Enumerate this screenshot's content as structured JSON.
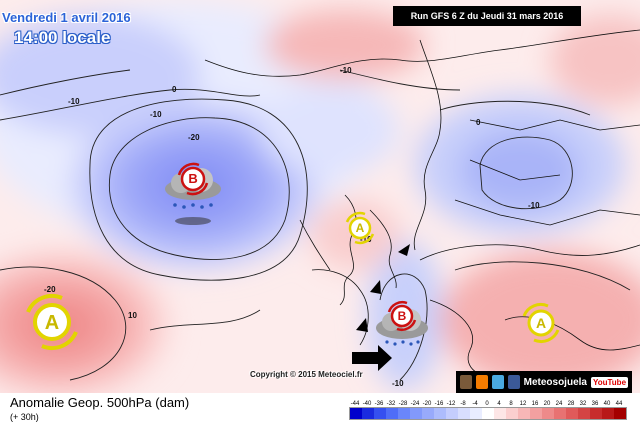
{
  "header": {
    "date": "Vendredi 1 avril 2016",
    "time": "14:00 locale",
    "run": "Run GFS 6 Z du Jeudi 31 mars 2016"
  },
  "contour_labels": [
    "-10",
    "-20",
    "-10",
    "-10",
    "0",
    "-10",
    "10",
    "-20",
    "0",
    "-10",
    "-10"
  ],
  "pressure_systems": [
    {
      "letter": "B",
      "kind": "low"
    },
    {
      "letter": "A",
      "kind": "high"
    },
    {
      "letter": "A",
      "kind": "high"
    },
    {
      "letter": "B",
      "kind": "low"
    },
    {
      "letter": "A",
      "kind": "high"
    }
  ],
  "copyright": "Copyright © 2015 Meteociel.fr",
  "brand": {
    "name": "Meteosojuela",
    "youtube": "YouTube"
  },
  "legend": {
    "title": "Anomalie Geop. 500hPa (dam)",
    "subtitle": "(+ 30h)",
    "scale_labels": [
      "-44",
      "-40",
      "-36",
      "-32",
      "-28",
      "-24",
      "-20",
      "-16",
      "-12",
      "-8",
      "-4",
      "0",
      "4",
      "8",
      "12",
      "16",
      "20",
      "24",
      "28",
      "32",
      "36",
      "40",
      "44"
    ],
    "colors": [
      "#0000cc",
      "#1a2be0",
      "#3550f0",
      "#4f6df7",
      "#6a86fa",
      "#8299fb",
      "#98aafb",
      "#adbcfc",
      "#c4cdfd",
      "#d8defe",
      "#e9edff",
      "#ffffff",
      "#fde6e6",
      "#fbcfcf",
      "#f7b7b7",
      "#f3a0a0",
      "#ee8a8a",
      "#e87272",
      "#e05a5a",
      "#d44444",
      "#c72c2c",
      "#b81818",
      "#a40000"
    ]
  }
}
